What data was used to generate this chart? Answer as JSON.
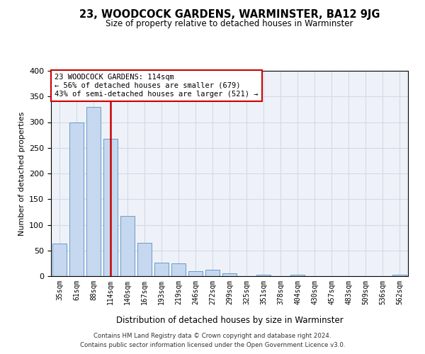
{
  "title": "23, WOODCOCK GARDENS, WARMINSTER, BA12 9JG",
  "subtitle": "Size of property relative to detached houses in Warminster",
  "xlabel": "Distribution of detached houses by size in Warminster",
  "ylabel": "Number of detached properties",
  "categories": [
    "35sqm",
    "61sqm",
    "88sqm",
    "114sqm",
    "140sqm",
    "167sqm",
    "193sqm",
    "219sqm",
    "246sqm",
    "272sqm",
    "299sqm",
    "325sqm",
    "351sqm",
    "378sqm",
    "404sqm",
    "430sqm",
    "457sqm",
    "483sqm",
    "509sqm",
    "536sqm",
    "562sqm"
  ],
  "values": [
    63,
    300,
    330,
    267,
    117,
    65,
    26,
    25,
    9,
    12,
    5,
    0,
    3,
    0,
    3,
    0,
    0,
    0,
    0,
    0,
    3
  ],
  "bar_color": "#c5d8f0",
  "bar_edge_color": "#5a8fc0",
  "vline_x_index": 3,
  "vline_color": "#cc0000",
  "annotation_text": "23 WOODCOCK GARDENS: 114sqm\n← 56% of detached houses are smaller (679)\n43% of semi-detached houses are larger (521) →",
  "annotation_box_color": "#ffffff",
  "annotation_box_edge_color": "#cc0000",
  "grid_color": "#d0daea",
  "background_color": "#eef2f8",
  "ylim": [
    0,
    400
  ],
  "yticks": [
    0,
    50,
    100,
    150,
    200,
    250,
    300,
    350,
    400
  ],
  "footer_line1": "Contains HM Land Registry data © Crown copyright and database right 2024.",
  "footer_line2": "Contains public sector information licensed under the Open Government Licence v3.0."
}
